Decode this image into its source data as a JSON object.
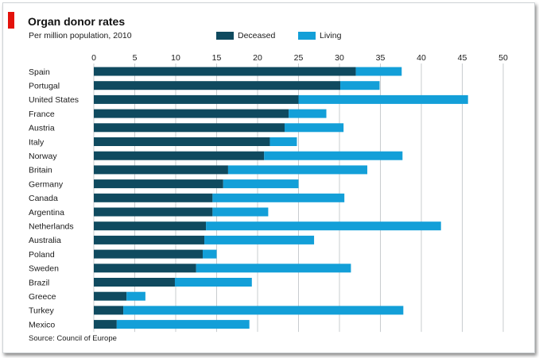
{
  "title": "Organ donor rates",
  "subtitle": "Per million population, 2010",
  "source": "Source: Council of Europe",
  "colors": {
    "accent": "#e3120b",
    "deceased": "#0f4a5f",
    "living": "#139fd8",
    "grid": "#c8cccf"
  },
  "chart_data": {
    "type": "bar",
    "orientation": "horizontal",
    "stacked": true,
    "title": "Organ donor rates",
    "subtitle": "Per million population, 2010",
    "legend_position": "top",
    "grid": true,
    "xlim": [
      0,
      50
    ],
    "xticks": [
      0,
      5,
      10,
      15,
      20,
      25,
      30,
      35,
      40,
      45,
      50
    ],
    "categories": [
      "Spain",
      "Portugal",
      "United States",
      "France",
      "Austria",
      "Italy",
      "Norway",
      "Britain",
      "Germany",
      "Canada",
      "Argentina",
      "Netherlands",
      "Australia",
      "Poland",
      "Sweden",
      "Brazil",
      "Greece",
      "Turkey",
      "Mexico"
    ],
    "series": [
      {
        "name": "Deceased",
        "values": [
          32.0,
          30.1,
          25.0,
          23.8,
          23.3,
          21.5,
          20.8,
          16.4,
          15.8,
          14.5,
          14.5,
          13.7,
          13.5,
          13.3,
          12.5,
          9.9,
          4.0,
          3.6,
          2.8
        ]
      },
      {
        "name": "Living",
        "values": [
          5.6,
          4.8,
          20.7,
          4.6,
          7.2,
          3.3,
          16.9,
          17.0,
          9.2,
          16.1,
          6.8,
          28.7,
          13.4,
          1.7,
          18.9,
          9.4,
          2.3,
          34.2,
          16.2
        ]
      }
    ]
  }
}
